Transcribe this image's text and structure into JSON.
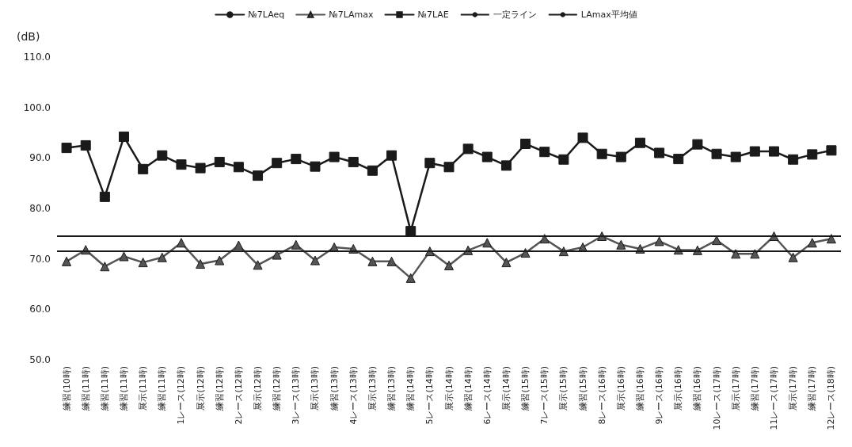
{
  "chart_data": {
    "type": "line",
    "ylabel": "(dB)",
    "categories": [
      "練習(10時)",
      "練習(11時)",
      "練習(11時)",
      "練習(11時)",
      "展示(11時)",
      "練習(11時)",
      "1レース(12時)",
      "展示(12時)",
      "練習(12時)",
      "2レース(12時)",
      "展示(12時)",
      "練習(12時)",
      "3レース(13時)",
      "展示(13時)",
      "練習(13時)",
      "4レース(13時)",
      "展示(13時)",
      "練習(13時)",
      "練習(14時)",
      "5レース(14時)",
      "展示(14時)",
      "練習(14時)",
      "6レース(14時)",
      "展示(14時)",
      "練習(15時)",
      "7レース(15時)",
      "展示(15時)",
      "練習(15時)",
      "8レース(16時)",
      "展示(16時)",
      "練習(16時)",
      "9レース(16時)",
      "展示(16時)",
      "練習(16時)",
      "10レース(17時)",
      "展示(17時)",
      "練習(17時)",
      "11レース(17時)",
      "展示(17時)",
      "練習(17時)",
      "12レース(18時)"
    ],
    "series": [
      {
        "name": "№7LAeq",
        "color": "#1a1a1a",
        "marker": "none",
        "values": [
          null,
          null,
          null,
          null,
          null,
          null,
          null,
          null,
          null,
          null,
          null,
          null,
          null,
          null,
          null,
          null,
          null,
          null,
          null,
          null,
          null,
          null,
          null,
          null,
          null,
          null,
          null,
          null,
          null,
          null,
          null,
          null,
          null,
          null,
          null,
          null,
          null,
          null,
          null,
          null,
          null
        ]
      },
      {
        "name": "№7LAmax",
        "color": "#555555",
        "marker": "triangle",
        "values": [
          69.5,
          71.8,
          68.5,
          70.5,
          69.3,
          70.3,
          73.2,
          69,
          69.7,
          72.7,
          68.8,
          70.8,
          72.8,
          69.7,
          72.3,
          72,
          69.5,
          69.5,
          66.2,
          71.5,
          68.7,
          71.7,
          73.2,
          69.3,
          71.2,
          74,
          71.5,
          72.3,
          74.5,
          72.8,
          72,
          73.5,
          71.8,
          71.7,
          73.7,
          71,
          71,
          74.5,
          70.3,
          73.2,
          74
        ]
      },
      {
        "name": "№7LAE",
        "color": "#1a1a1a",
        "marker": "square",
        "values": [
          92,
          92.5,
          82.3,
          94.2,
          87.8,
          90.5,
          88.7,
          88,
          89.2,
          88.2,
          86.5,
          89,
          89.8,
          88.3,
          90.2,
          89.2,
          87.5,
          90.5,
          75.5,
          89,
          88.2,
          91.8,
          90.2,
          88.5,
          92.8,
          91.2,
          89.7,
          94,
          90.8,
          90.2,
          93,
          91,
          89.8,
          92.7,
          90.8,
          90.2,
          91.3,
          91.3,
          89.7,
          90.7,
          91.5
        ]
      }
    ],
    "ref_lines": [
      {
        "axis": "y",
        "value": 74.5,
        "label": "一定ライン",
        "color": "#1a1a1a"
      },
      {
        "axis": "y",
        "value": 71.5,
        "label": "LAmax平均値",
        "color": "#1a1a1a"
      }
    ],
    "ylim": [
      50,
      110
    ],
    "yticks": [
      {
        "value": 50,
        "label": "50.0"
      },
      {
        "value": 60,
        "label": "60.0"
      },
      {
        "value": 70,
        "label": "70.0"
      },
      {
        "value": 80,
        "label": "80.0"
      },
      {
        "value": 90,
        "label": "90.0"
      },
      {
        "value": 100,
        "label": "100.0"
      },
      {
        "value": 110,
        "label": "110.0"
      }
    ],
    "grid": false,
    "legend": "top"
  }
}
